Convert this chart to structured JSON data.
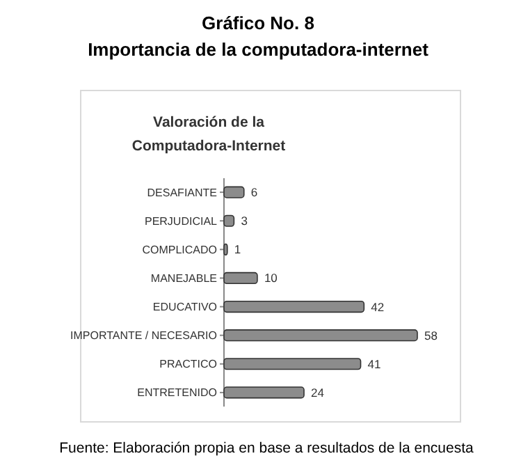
{
  "chart_data": {
    "type": "bar",
    "orientation": "horizontal",
    "title": "Gráfico No. 8\nImportancia de la computadora-internet",
    "subtitle": "Valoración de la\nComputadora-Internet",
    "categories": [
      "DESAFIANTE",
      "PERJUDICIAL",
      "COMPLICADO",
      "MANEJABLE",
      "EDUCATIVO",
      "IMPORTANTE / NECESARIO",
      "PRACTICO",
      "ENTRETENIDO"
    ],
    "values": [
      6,
      3,
      1,
      10,
      42,
      58,
      41,
      24
    ],
    "color": "#8c8c8c",
    "data_labels": true,
    "annotations": [
      "Fuente: Elaboración propia en base a resultados de la encuesta"
    ]
  }
}
